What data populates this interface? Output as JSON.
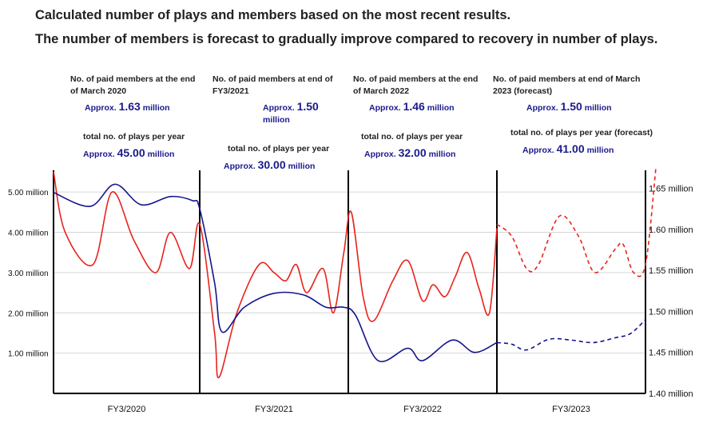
{
  "headlines": {
    "line1": "Calculated number of plays and members based on the most recent results.",
    "line2": "The number of members is forecast to gradually improve compared to recovery in number of plays."
  },
  "periods": [
    {
      "members_label": "No. of paid members at the end of March 2020",
      "members_prefix": "Approx.",
      "members_value": "1.63",
      "members_unit": "million",
      "plays_label": "total no. of plays per year",
      "plays_prefix": "Approx.",
      "plays_value": "45.00",
      "plays_unit": "million"
    },
    {
      "members_label": "No. of paid members at end of FY3/2021",
      "members_prefix": "Approx.",
      "members_value": "1.50",
      "members_unit": "million",
      "plays_label": "total no. of plays per year",
      "plays_prefix": "Approx.",
      "plays_value": "30.00",
      "plays_unit": "million"
    },
    {
      "members_label": "No. of paid members at the end of March 2022",
      "members_prefix": "Approx.",
      "members_value": "1.46",
      "members_unit": "million",
      "plays_label": "total no. of plays per year",
      "plays_prefix": "Approx.",
      "plays_value": "32.00",
      "plays_unit": "million"
    },
    {
      "members_label": "No. of paid members at end of March 2023 (forecast)",
      "members_prefix": "Approx.",
      "members_value": "1.50",
      "members_unit": "million",
      "plays_label": "total no. of plays per year (forecast)",
      "plays_prefix": "Approx.",
      "plays_value": "41.00",
      "plays_unit": "million"
    }
  ],
  "colors": {
    "plays": "#e8231b",
    "members": "#14148c",
    "grid": "#d6d6d6",
    "axis": "#000000"
  },
  "chart_data": {
    "type": "line",
    "categories": [
      "FY3/2020",
      "FY3/2021",
      "FY3/2022",
      "FY3/2023"
    ],
    "left_axis": {
      "ticks": [
        "1.00 million",
        "2.00 million",
        "3.00 million",
        "4.00 million",
        "5.00 million"
      ],
      "range": [
        0,
        5.5
      ]
    },
    "right_axis": {
      "ticks": [
        "1.40 million",
        "1.45 million",
        "1.50 million",
        "1.55 million",
        "1.60 million",
        "1.65 million"
      ],
      "range": [
        1.4,
        1.67
      ]
    },
    "grid": true,
    "series": [
      {
        "key": "plays",
        "axis": "left",
        "points": [
          [
            0.0,
            5.5
          ],
          [
            0.08,
            4.0
          ],
          [
            0.27,
            3.2
          ],
          [
            0.4,
            5.0
          ],
          [
            0.55,
            3.8
          ],
          [
            0.7,
            3.0
          ],
          [
            0.8,
            4.0
          ],
          [
            0.93,
            3.1
          ],
          [
            1.0,
            4.2
          ],
          [
            1.1,
            1.5
          ],
          [
            1.13,
            0.4
          ],
          [
            1.25,
            2.0
          ],
          [
            1.4,
            3.2
          ],
          [
            1.5,
            3.0
          ],
          [
            1.58,
            2.8
          ],
          [
            1.65,
            3.2
          ],
          [
            1.72,
            2.5
          ],
          [
            1.83,
            3.1
          ],
          [
            1.9,
            2.0
          ],
          [
            1.97,
            3.5
          ],
          [
            2.02,
            4.5
          ],
          [
            2.1,
            2.4
          ],
          [
            2.17,
            1.8
          ],
          [
            2.3,
            2.8
          ],
          [
            2.4,
            3.3
          ],
          [
            2.5,
            2.3
          ],
          [
            2.57,
            2.7
          ],
          [
            2.65,
            2.4
          ],
          [
            2.72,
            2.9
          ],
          [
            2.8,
            3.5
          ],
          [
            2.88,
            2.6
          ],
          [
            2.95,
            2.0
          ],
          [
            3.0,
            4.1
          ]
        ]
      },
      {
        "key": "plays_forecast",
        "axis": "left",
        "dashed": true,
        "points": [
          [
            3.0,
            4.2
          ],
          [
            3.1,
            3.9
          ],
          [
            3.2,
            3.1
          ],
          [
            3.28,
            3.2
          ],
          [
            3.42,
            4.4
          ],
          [
            3.55,
            3.9
          ],
          [
            3.66,
            3.0
          ],
          [
            3.8,
            3.6
          ],
          [
            3.85,
            3.7
          ],
          [
            3.92,
            3.0
          ],
          [
            4.0,
            3.2
          ],
          [
            4.07,
            5.6
          ]
        ]
      },
      {
        "key": "members",
        "axis": "right",
        "points": [
          [
            0.0,
            1.645
          ],
          [
            0.25,
            1.628
          ],
          [
            0.42,
            1.655
          ],
          [
            0.6,
            1.63
          ],
          [
            0.8,
            1.64
          ],
          [
            0.95,
            1.635
          ],
          [
            1.0,
            1.625
          ],
          [
            1.1,
            1.535
          ],
          [
            1.15,
            1.475
          ],
          [
            1.3,
            1.505
          ],
          [
            1.5,
            1.522
          ],
          [
            1.7,
            1.52
          ],
          [
            1.85,
            1.505
          ],
          [
            1.97,
            1.505
          ],
          [
            2.05,
            1.495
          ],
          [
            2.2,
            1.44
          ],
          [
            2.4,
            1.455
          ],
          [
            2.5,
            1.44
          ],
          [
            2.7,
            1.465
          ],
          [
            2.85,
            1.45
          ],
          [
            3.0,
            1.462
          ]
        ]
      },
      {
        "key": "members_forecast",
        "axis": "right",
        "dashed": true,
        "points": [
          [
            3.0,
            1.462
          ],
          [
            3.1,
            1.46
          ],
          [
            3.2,
            1.453
          ],
          [
            3.35,
            1.466
          ],
          [
            3.5,
            1.465
          ],
          [
            3.65,
            1.462
          ],
          [
            3.8,
            1.468
          ],
          [
            3.9,
            1.473
          ],
          [
            4.0,
            1.49
          ]
        ]
      }
    ]
  }
}
